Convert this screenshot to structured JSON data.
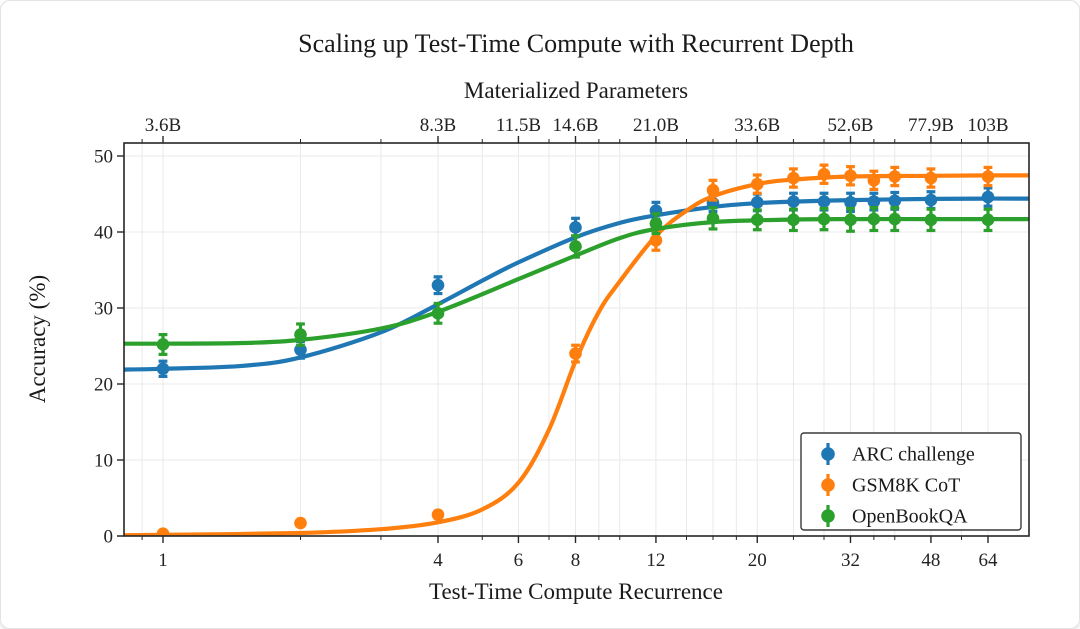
{
  "chart_data": {
    "type": "line",
    "title": "Scaling up Test-Time Compute with Recurrent Depth",
    "top_axis": {
      "label": "Materialized Parameters",
      "ticks": [
        {
          "r": 1,
          "label": "3.6B"
        },
        {
          "r": 4,
          "label": "8.3B"
        },
        {
          "r": 6,
          "label": "11.5B"
        },
        {
          "r": 8,
          "label": "14.6B"
        },
        {
          "r": 12,
          "label": "21.0B"
        },
        {
          "r": 20,
          "label": "33.6B"
        },
        {
          "r": 32,
          "label": "52.6B"
        },
        {
          "r": 48,
          "label": "77.9B"
        },
        {
          "r": 64,
          "label": "103B"
        }
      ]
    },
    "x_axis": {
      "label": "Test-Time Compute Recurrence",
      "scale": "log2",
      "range": [
        0.82,
        78.8
      ],
      "major_ticks": [
        1,
        4,
        6,
        8,
        12,
        20,
        32,
        48,
        64
      ],
      "minor_ticks": [
        0.9,
        2,
        3,
        5,
        7,
        9,
        10,
        14,
        16,
        18,
        24,
        28,
        36,
        40,
        56
      ]
    },
    "y_axis": {
      "label": "Accuracy (%)",
      "range": [
        0,
        51.7
      ],
      "ticks": [
        0,
        10,
        20,
        30,
        40,
        50
      ]
    },
    "grid": true,
    "legend": {
      "position": "lower right"
    },
    "x": [
      1,
      2,
      4,
      8,
      12,
      16,
      20,
      24,
      28,
      32,
      36,
      40,
      48,
      64
    ],
    "series": [
      {
        "name": "ARC challenge",
        "color": "#1f77b4",
        "y": [
          22.0,
          24.5,
          33.0,
          40.6,
          42.8,
          43.8,
          43.9,
          44.0,
          44.0,
          43.9,
          44.0,
          44.1,
          44.2,
          44.6
        ],
        "yerr": [
          1.0,
          1.1,
          1.1,
          1.2,
          1.1,
          1.1,
          1.1,
          1.1,
          1.1,
          1.2,
          1.1,
          1.1,
          1.1,
          1.2
        ],
        "fit_curve": [
          [
            0.82,
            21.9
          ],
          [
            1,
            22.0
          ],
          [
            1.5,
            22.4
          ],
          [
            2,
            23.5
          ],
          [
            3,
            26.8
          ],
          [
            4,
            30.5
          ],
          [
            5,
            33.6
          ],
          [
            6,
            36.0
          ],
          [
            8,
            39.3
          ],
          [
            10,
            41.2
          ],
          [
            12,
            42.2
          ],
          [
            16,
            43.3
          ],
          [
            20,
            43.8
          ],
          [
            24,
            44.0
          ],
          [
            32,
            44.2
          ],
          [
            48,
            44.35
          ],
          [
            64,
            44.4
          ],
          [
            78.8,
            44.4
          ]
        ]
      },
      {
        "name": "GSM8K CoT",
        "color": "#ff7f0e",
        "y": [
          0.3,
          1.7,
          2.8,
          24.0,
          38.9,
          45.5,
          46.3,
          47.1,
          47.6,
          47.4,
          46.8,
          47.3,
          47.1,
          47.3
        ],
        "yerr": [
          0.2,
          0.35,
          0.45,
          1.1,
          1.3,
          1.3,
          1.2,
          1.2,
          1.2,
          1.2,
          1.2,
          1.2,
          1.2,
          1.2
        ],
        "fit_curve": [
          [
            0.82,
            0.1
          ],
          [
            1,
            0.15
          ],
          [
            2,
            0.4
          ],
          [
            3,
            0.9
          ],
          [
            4,
            1.8
          ],
          [
            5,
            3.5
          ],
          [
            6,
            7.0
          ],
          [
            7,
            14.0
          ],
          [
            8,
            23.0
          ],
          [
            9,
            29.5
          ],
          [
            10,
            33.5
          ],
          [
            12,
            39.5
          ],
          [
            14,
            42.8
          ],
          [
            16,
            44.7
          ],
          [
            20,
            46.3
          ],
          [
            24,
            46.9
          ],
          [
            32,
            47.3
          ],
          [
            48,
            47.4
          ],
          [
            64,
            47.45
          ],
          [
            78.8,
            47.45
          ]
        ]
      },
      {
        "name": "OpenBookQA",
        "color": "#2ca02c",
        "y": [
          25.2,
          26.5,
          29.3,
          38.1,
          41.1,
          41.8,
          41.6,
          41.6,
          41.7,
          41.6,
          41.7,
          41.7,
          41.6,
          41.6
        ],
        "yerr": [
          1.3,
          1.4,
          1.3,
          1.4,
          1.3,
          1.4,
          1.3,
          1.4,
          1.4,
          1.5,
          1.5,
          1.5,
          1.4,
          1.4
        ],
        "fit_curve": [
          [
            0.82,
            25.3
          ],
          [
            1,
            25.3
          ],
          [
            1.5,
            25.4
          ],
          [
            2,
            25.8
          ],
          [
            3,
            27.3
          ],
          [
            4,
            29.5
          ],
          [
            6,
            33.8
          ],
          [
            8,
            36.9
          ],
          [
            10,
            39.2
          ],
          [
            12,
            40.4
          ],
          [
            16,
            41.3
          ],
          [
            24,
            41.65
          ],
          [
            32,
            41.7
          ],
          [
            48,
            41.7
          ],
          [
            64,
            41.7
          ],
          [
            78.8,
            41.7
          ]
        ]
      }
    ]
  }
}
